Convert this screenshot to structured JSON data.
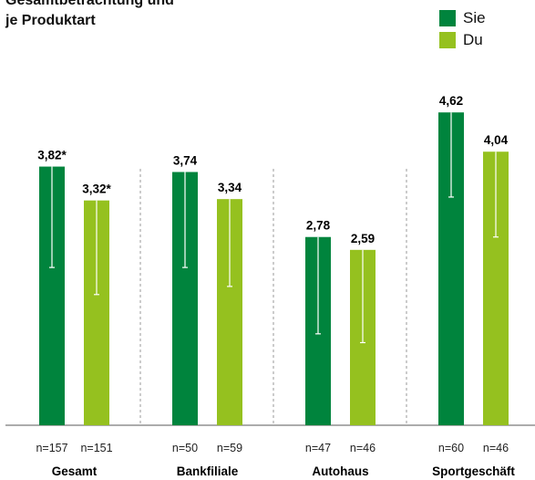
{
  "title_lines": [
    "Gesamtbetrachtung und",
    "je Produktart"
  ],
  "chart_data": {
    "type": "bar",
    "categories": [
      "Gesamt",
      "Bankfiliale",
      "Autohaus",
      "Sportgeschäft"
    ],
    "series": [
      {
        "name": "Sie",
        "color": "#00843d",
        "values": [
          3.82,
          3.74,
          2.78,
          4.62
        ],
        "labels": [
          "3,82*",
          "3,74",
          "2,78",
          "4,62"
        ],
        "n": [
          "n=157",
          "n=50",
          "n=47",
          "n=60"
        ],
        "error_low": [
          2.33,
          2.33,
          1.35,
          3.37
        ]
      },
      {
        "name": "Du",
        "color": "#95c11f",
        "values": [
          3.32,
          3.34,
          2.59,
          4.04
        ],
        "labels": [
          "3,32*",
          "3,34",
          "2,59",
          "4,04"
        ],
        "n": [
          "n=151",
          "n=59",
          "n=46",
          "n=46"
        ],
        "error_low": [
          1.93,
          2.05,
          1.22,
          2.78
        ]
      }
    ],
    "ylim": [
      0,
      5
    ],
    "grid": false,
    "legend_position": "top-right"
  }
}
